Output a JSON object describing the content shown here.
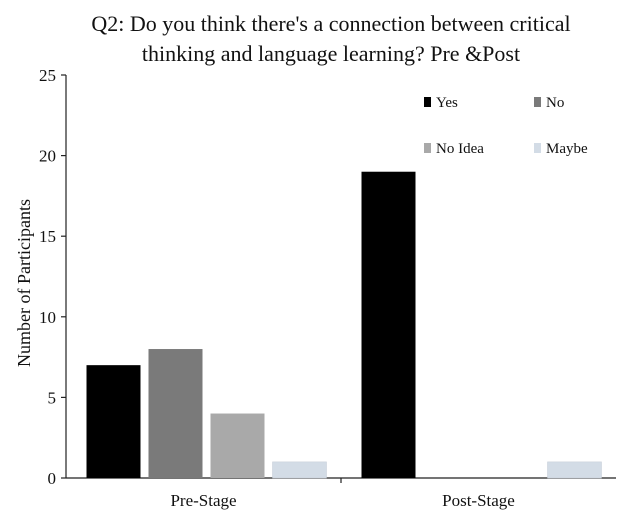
{
  "chart_data": {
    "type": "bar",
    "title_lines": [
      "Q2: Do you think there's a connection between critical",
      "thinking and language learning? Pre &Post"
    ],
    "xlabel": "",
    "ylabel": "Number of Participants",
    "ylim": [
      0,
      25
    ],
    "yticks": [
      0,
      5,
      10,
      15,
      20,
      25
    ],
    "grid": false,
    "legend_position": "top-right",
    "categories": [
      "Pre-Stage",
      "Post-Stage"
    ],
    "series": [
      {
        "name": "Yes",
        "color": "#000000",
        "values": [
          7,
          19
        ]
      },
      {
        "name": "No",
        "color": "#7a7a7a",
        "values": [
          8,
          0
        ]
      },
      {
        "name": "No Idea",
        "color": "#a9a9a9",
        "values": [
          4,
          0
        ]
      },
      {
        "name": "Maybe",
        "color": "#d3dce6",
        "values": [
          1,
          1
        ]
      }
    ]
  }
}
